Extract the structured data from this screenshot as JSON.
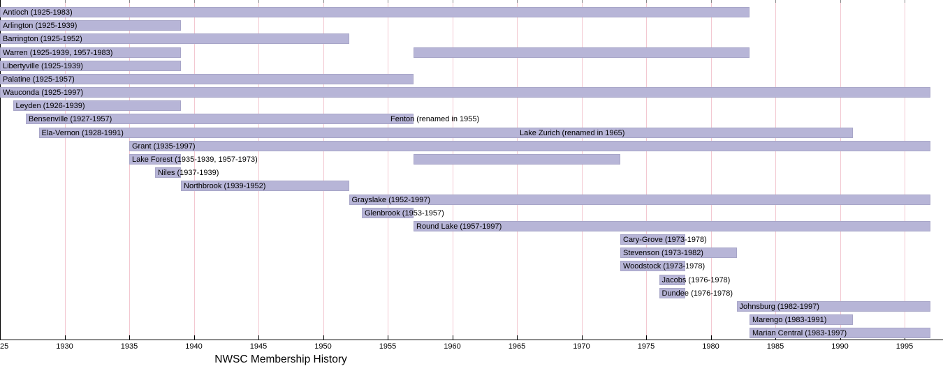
{
  "chart_data": {
    "type": "bar",
    "variant": "timeline-gantt",
    "title": "NWSC Membership History",
    "legend": "none",
    "grid": "vertical-on",
    "colors": {
      "bar_fill": "#b7b5d7",
      "bar_border": "#a8a6c8",
      "gridline": "#f3c8d1",
      "axis": "#000000",
      "text": "#000000",
      "background": "#ffffff"
    },
    "x_axis": {
      "unit": "year",
      "range": [
        1925,
        1997
      ],
      "tick_years": [
        1925,
        1930,
        1935,
        1940,
        1945,
        1950,
        1955,
        1960,
        1965,
        1970,
        1975,
        1980,
        1985,
        1990,
        1995
      ],
      "tick_labels": [
        "25",
        "1930",
        "1935",
        "1940",
        "1945",
        "1950",
        "1955",
        "1960",
        "1965",
        "1970",
        "1975",
        "1980",
        "1985",
        "1990",
        "1995"
      ]
    },
    "rows": [
      {
        "name": "antioch",
        "label": "Antioch (1925-1983)",
        "bars": [
          [
            1925,
            1983
          ]
        ]
      },
      {
        "name": "arlington",
        "label": "Arlington (1925-1939)",
        "bars": [
          [
            1925,
            1939
          ]
        ]
      },
      {
        "name": "barrington",
        "label": "Barrington (1925-1952)",
        "bars": [
          [
            1925,
            1952
          ]
        ]
      },
      {
        "name": "warren",
        "label": "Warren (1925-1939, 1957-1983)",
        "bars": [
          [
            1925,
            1939
          ],
          [
            1957,
            1983
          ]
        ]
      },
      {
        "name": "libertyville",
        "label": "Libertyville (1925-1939)",
        "bars": [
          [
            1925,
            1939
          ]
        ]
      },
      {
        "name": "palatine",
        "label": "Palatine (1925-1957)",
        "bars": [
          [
            1925,
            1957
          ]
        ]
      },
      {
        "name": "wauconda",
        "label": "Wauconda (1925-1997)",
        "bars": [
          [
            1925,
            1997
          ]
        ]
      },
      {
        "name": "leyden",
        "label": "Leyden (1926-1939)",
        "bars": [
          [
            1926,
            1939
          ]
        ]
      },
      {
        "name": "bensenville",
        "label": "Bensenville (1927-1957)",
        "bars": [
          [
            1927,
            1957
          ]
        ],
        "annotation": {
          "label": "Fenton (renamed in 1955)",
          "anchor_year": 1955
        }
      },
      {
        "name": "ela-vernon",
        "label": "Ela-Vernon (1928-1991)",
        "bars": [
          [
            1928,
            1991
          ]
        ],
        "annotation": {
          "label": "Lake Zurich (renamed in 1965)",
          "anchor_year": 1965
        }
      },
      {
        "name": "grant",
        "label": "Grant (1935-1997)",
        "bars": [
          [
            1935,
            1997
          ]
        ]
      },
      {
        "name": "lake-forest",
        "label": "Lake Forest (1935-1939, 1957-1973)",
        "bars": [
          [
            1935,
            1939
          ],
          [
            1957,
            1973
          ]
        ]
      },
      {
        "name": "niles",
        "label": "Niles (1937-1939)",
        "bars": [
          [
            1937,
            1939
          ]
        ]
      },
      {
        "name": "northbrook",
        "label": "Northbrook (1939-1952)",
        "bars": [
          [
            1939,
            1952
          ]
        ]
      },
      {
        "name": "grayslake",
        "label": "Grayslake (1952-1997)",
        "bars": [
          [
            1952,
            1997
          ]
        ]
      },
      {
        "name": "glenbrook",
        "label": "Glenbrook (1953-1957)",
        "bars": [
          [
            1953,
            1957
          ]
        ]
      },
      {
        "name": "round-lake",
        "label": "Round Lake (1957-1997)",
        "bars": [
          [
            1957,
            1997
          ]
        ]
      },
      {
        "name": "cary-grove",
        "label": "Cary-Grove (1973-1978)",
        "bars": [
          [
            1973,
            1978
          ]
        ]
      },
      {
        "name": "stevenson",
        "label": "Stevenson (1973-1982)",
        "bars": [
          [
            1973,
            1982
          ]
        ]
      },
      {
        "name": "woodstock",
        "label": "Woodstock (1973-1978)",
        "bars": [
          [
            1973,
            1978
          ]
        ]
      },
      {
        "name": "jacobs",
        "label": "Jacobs (1976-1978)",
        "bars": [
          [
            1976,
            1978
          ]
        ]
      },
      {
        "name": "dundee",
        "label": "Dundee (1976-1978)",
        "bars": [
          [
            1976,
            1978
          ]
        ]
      },
      {
        "name": "johnsburg",
        "label": "Johnsburg (1982-1997)",
        "bars": [
          [
            1982,
            1997
          ]
        ]
      },
      {
        "name": "marengo",
        "label": "Marengo (1983-1991)",
        "bars": [
          [
            1983,
            1991
          ]
        ]
      },
      {
        "name": "marian-central",
        "label": "Marian Central (1983-1997)",
        "bars": [
          [
            1983,
            1997
          ]
        ]
      }
    ]
  }
}
